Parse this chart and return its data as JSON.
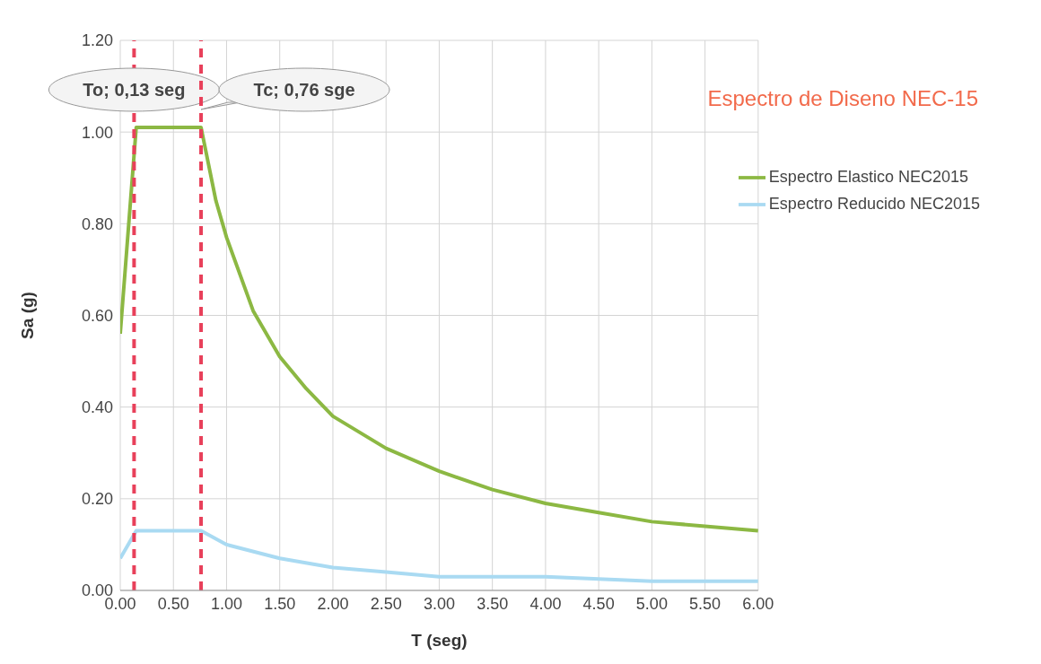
{
  "chart_data": {
    "type": "line",
    "title": "Espectro de Diseno NEC-15",
    "xlabel": "T (seg)",
    "ylabel": "Sa (g)",
    "xlim": [
      0,
      6
    ],
    "ylim": [
      0,
      1.2
    ],
    "xticks": [
      {
        "value": 0,
        "label": "0.00"
      },
      {
        "value": 0.5,
        "label": "0.50"
      },
      {
        "value": 1,
        "label": "1.00"
      },
      {
        "value": 1.5,
        "label": "1.50"
      },
      {
        "value": 2,
        "label": "2.00"
      },
      {
        "value": 2.5,
        "label": "2.50"
      },
      {
        "value": 3,
        "label": "3.00"
      },
      {
        "value": 3.5,
        "label": "3.50"
      },
      {
        "value": 4,
        "label": "4.00"
      },
      {
        "value": 4.5,
        "label": "4.50"
      },
      {
        "value": 5,
        "label": "5.00"
      },
      {
        "value": 5.5,
        "label": "5.50"
      },
      {
        "value": 6,
        "label": "6.00"
      }
    ],
    "yticks": [
      {
        "value": 0,
        "label": "0.00"
      },
      {
        "value": 0.2,
        "label": "0.20"
      },
      {
        "value": 0.4,
        "label": "0.40"
      },
      {
        "value": 0.6,
        "label": "0.60"
      },
      {
        "value": 0.8,
        "label": "0.80"
      },
      {
        "value": 1,
        "label": "1.00"
      },
      {
        "value": 1.2,
        "label": "1.20"
      }
    ],
    "grid": true,
    "legend": "top right",
    "marker": "none",
    "line_style": "solid",
    "series": [
      {
        "name": "Espectro Elastico NEC2015",
        "color": "#8cb843",
        "x": [
          0,
          0.15,
          0.76,
          0.9,
          1,
          1.25,
          1.5,
          1.75,
          2,
          2.5,
          3,
          3.5,
          4,
          4.5,
          5,
          5.5,
          6
        ],
        "values": [
          0.56,
          1.01,
          1.01,
          0.85,
          0.77,
          0.61,
          0.51,
          0.44,
          0.38,
          0.31,
          0.26,
          0.22,
          0.19,
          0.17,
          0.15,
          0.14,
          0.13
        ]
      },
      {
        "name": "Espectro Reducido NEC2015",
        "color": "#a9daf2",
        "x": [
          0,
          0.15,
          0.76,
          1,
          1.5,
          2,
          2.5,
          3,
          4,
          5,
          6
        ],
        "values": [
          0.07,
          0.13,
          0.13,
          0.1,
          0.07,
          0.05,
          0.04,
          0.03,
          0.03,
          0.02,
          0.02
        ]
      }
    ],
    "ref_lines": [
      {
        "axis": "x",
        "value": 0.13,
        "label": "To; 0,13 seg",
        "color": "#e8405a",
        "line_style": "dashed"
      },
      {
        "axis": "x",
        "value": 0.76,
        "label": "Tc; 0,76 sge",
        "color": "#e8405a",
        "line_style": "dashed"
      }
    ]
  }
}
